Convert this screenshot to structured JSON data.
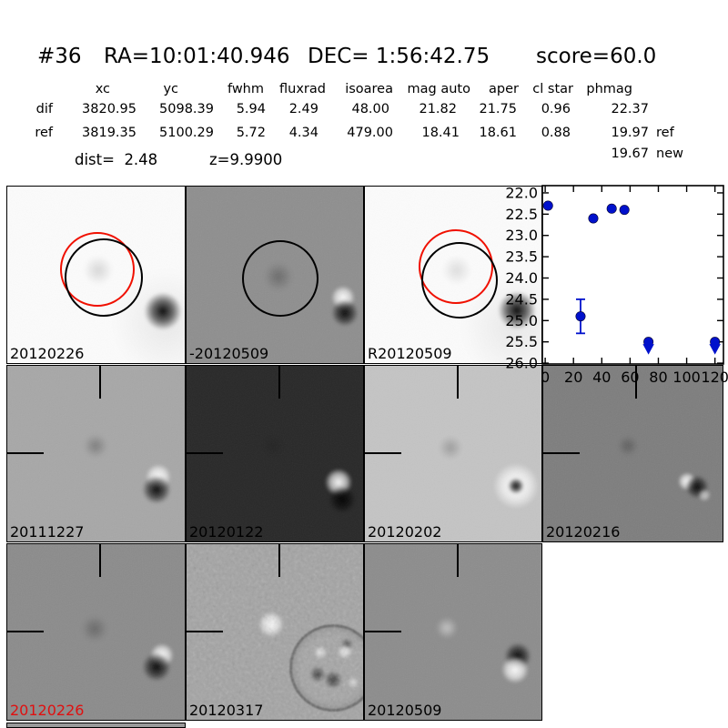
{
  "title": {
    "id": "#36",
    "ra": "RA=10:01:40.946",
    "dec": "DEC= 1:56:42.75",
    "score": "score=60.0"
  },
  "table": {
    "headers": [
      "xc",
      "yc",
      "fwhm",
      "fluxrad",
      "isoarea",
      "mag auto",
      "aper",
      "cl star",
      "phmag"
    ],
    "rows": [
      {
        "label": "dif",
        "values": [
          "3820.95",
          "5098.39",
          "5.94",
          "2.49",
          "48.00",
          "21.82",
          "21.75",
          "0.96",
          "22.37"
        ],
        "suffix": ""
      },
      {
        "label": "ref",
        "values": [
          "3819.35",
          "5100.29",
          "5.72",
          "4.34",
          "479.00",
          "18.41",
          "18.61",
          "0.88",
          "19.97"
        ],
        "suffix": "ref"
      }
    ],
    "extra_phmag": {
      "value": "19.67",
      "suffix": "new"
    },
    "dist": "dist=  2.48",
    "z": "z=9.9900"
  },
  "panels": {
    "row1": [
      {
        "label": "20120226",
        "bg": "#fbfbfb"
      },
      {
        "label": "-20120509",
        "bg": "#8e8e8e"
      },
      {
        "label": "R20120509",
        "bg": "#fbfbfb"
      }
    ],
    "row2": [
      {
        "label": "20111227",
        "bg": "#a7a7a7"
      },
      {
        "label": "20120122",
        "bg": "#282828"
      },
      {
        "label": "20120202",
        "bg": "#c4c4c4"
      },
      {
        "label": "20120216",
        "bg": "#7d7d7d"
      }
    ],
    "row3": [
      {
        "label": "20120226",
        "bg": "#8b8b8b",
        "label_color": "#e01010"
      },
      {
        "label": "20120317",
        "bg": "#a3a3a3"
      },
      {
        "label": "20120509",
        "bg": "#8c8c8c"
      }
    ]
  },
  "chart_data": {
    "type": "scatter",
    "title": "",
    "xlabel": "",
    "ylabel": "",
    "legend": null,
    "grid": false,
    "y_axis_inverted": true,
    "xlim": [
      -2,
      126
    ],
    "ylim": [
      26.02,
      21.83
    ],
    "x_ticks": [
      0,
      20,
      40,
      60,
      80,
      100,
      120
    ],
    "y_ticks": [
      22.0,
      22.5,
      23.0,
      23.5,
      24.0,
      24.5,
      25.0,
      25.5,
      26.0
    ],
    "marker_color": "#0011cc",
    "points": [
      {
        "x": 2,
        "y": 22.3
      },
      {
        "x": 25,
        "y": 24.9,
        "yerr": 0.4
      },
      {
        "x": 34,
        "y": 22.6
      },
      {
        "x": 47,
        "y": 22.37
      },
      {
        "x": 56,
        "y": 22.4
      },
      {
        "x": 73,
        "y": 25.5,
        "limit": "lower"
      },
      {
        "x": 120,
        "y": 25.5,
        "limit": "lower"
      }
    ]
  }
}
